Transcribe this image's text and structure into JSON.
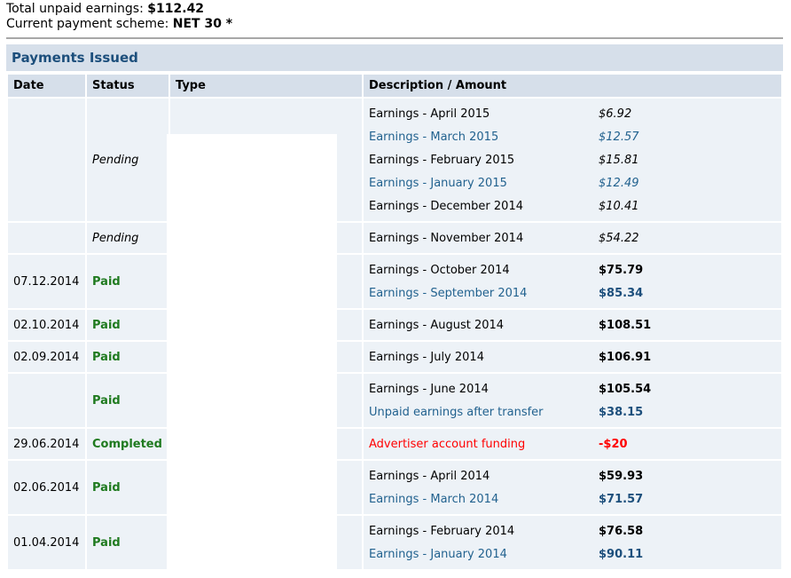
{
  "summary": {
    "unpaid_label": "Total unpaid earnings:",
    "unpaid_value": "$112.42",
    "scheme_label": "Current payment scheme:",
    "scheme_value": "NET 30 *"
  },
  "section_title": "Payments Issued",
  "columns": [
    "Date",
    "Status",
    "Type",
    "Description / Amount"
  ],
  "colors": {
    "paid": "#1f7a1f",
    "link": "#22628f",
    "negative": "#ff0000",
    "header_bg": "#d6dfea",
    "row_bg": "#edf2f7"
  },
  "rows": [
    {
      "date": "",
      "status": "Pending",
      "kind": "pending",
      "items": [
        [
          "Earnings - April 2015",
          "$6.92"
        ],
        [
          "Earnings - March 2015",
          "$12.57"
        ],
        [
          "Earnings - February 2015",
          "$15.81"
        ],
        [
          "Earnings - January 2015",
          "$12.49"
        ],
        [
          "Earnings - December 2014",
          "$10.41"
        ]
      ]
    },
    {
      "date": "",
      "status": "Pending",
      "kind": "pending",
      "items": [
        [
          "Earnings - November 2014",
          "$54.22"
        ]
      ]
    },
    {
      "date": "07.12.2014",
      "status": "Paid",
      "kind": "paid",
      "items": [
        [
          "Earnings - October 2014",
          "$75.79"
        ],
        [
          "Earnings - September 2014",
          "$85.34"
        ]
      ]
    },
    {
      "date": "02.10.2014",
      "status": "Paid",
      "kind": "paid",
      "items": [
        [
          "Earnings - August 2014",
          "$108.51"
        ]
      ]
    },
    {
      "date": "02.09.2014",
      "status": "Paid",
      "kind": "paid",
      "items": [
        [
          "Earnings - July 2014",
          "$106.91"
        ]
      ]
    },
    {
      "date": "",
      "status": "Paid",
      "kind": "paid",
      "items": [
        [
          "Earnings - June 2014",
          "$105.54"
        ],
        [
          "Unpaid earnings after transfer",
          "$38.15"
        ]
      ]
    },
    {
      "date": "29.06.2014",
      "status": "Completed",
      "kind": "negative",
      "items": [
        [
          "Advertiser account funding",
          "-$20"
        ]
      ]
    },
    {
      "date": "02.06.2014",
      "status": "Paid",
      "kind": "paid",
      "items": [
        [
          "Earnings - April 2014",
          "$59.93"
        ],
        [
          "Earnings - March 2014",
          "$71.57"
        ]
      ]
    },
    {
      "date": "01.04.2014",
      "status": "Paid",
      "kind": "paid",
      "items": [
        [
          "Earnings - February 2014",
          "$76.58"
        ],
        [
          "Earnings - January 2014",
          "$90.11"
        ]
      ]
    }
  ]
}
